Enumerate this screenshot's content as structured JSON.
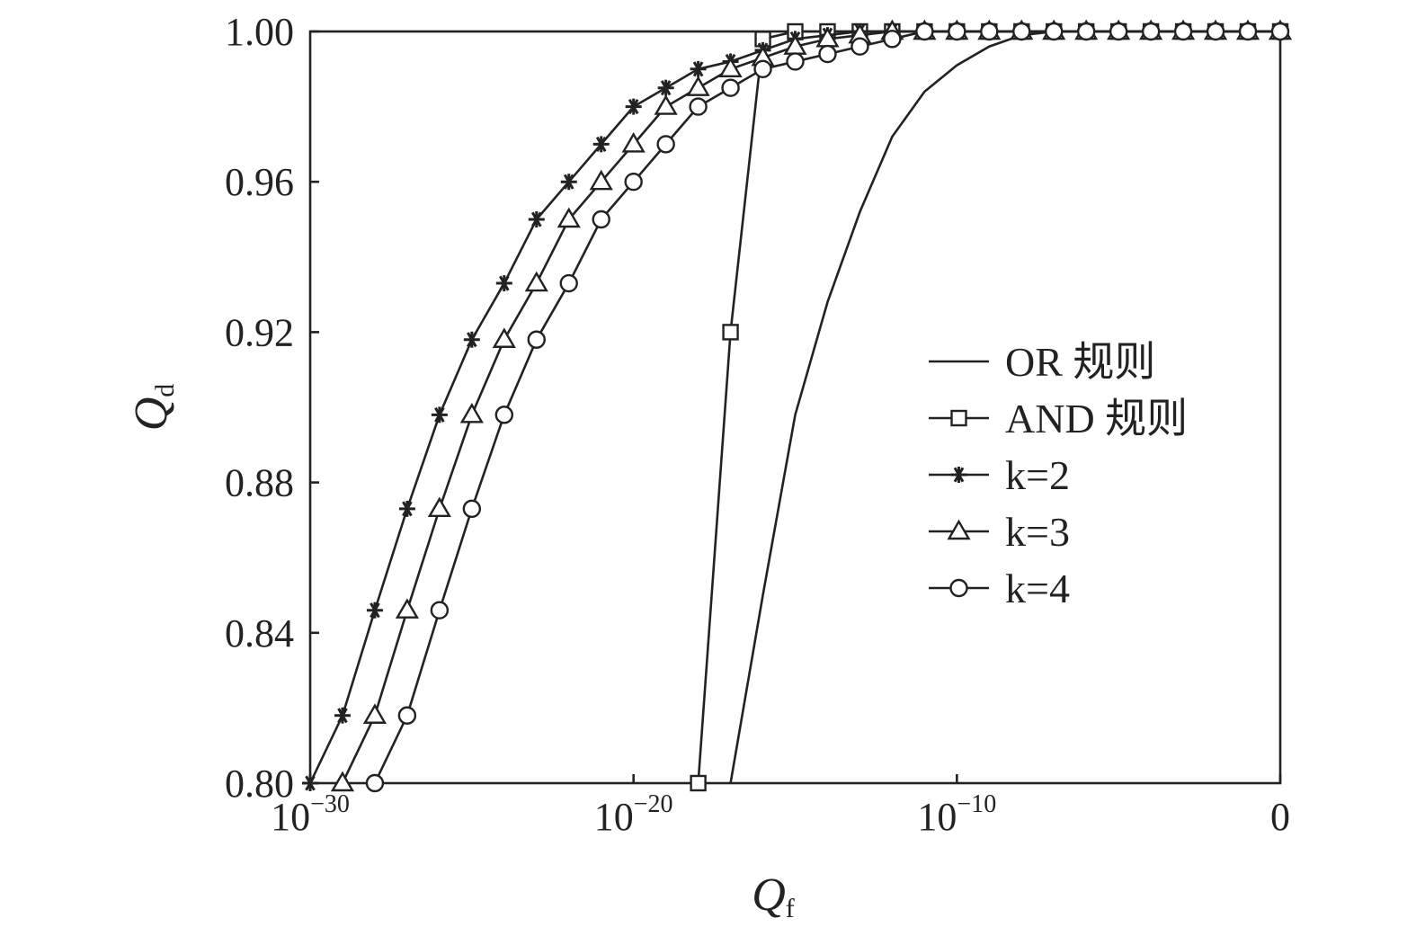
{
  "chart_data": {
    "type": "line",
    "xlabel": "Q",
    "xlabel_sub": "f",
    "ylabel": "Q",
    "ylabel_sub": "d",
    "xscale": "log",
    "xlim_exp": [
      -30,
      0
    ],
    "ylim": [
      0.8,
      1.0
    ],
    "x_ticks": [
      {
        "exp": -30,
        "base": "10",
        "sup": "−30"
      },
      {
        "exp": -20,
        "base": "10",
        "sup": "−20"
      },
      {
        "exp": -10,
        "base": "10",
        "sup": "−10"
      },
      {
        "exp": 0,
        "base": "0",
        "sup": ""
      }
    ],
    "y_ticks": [
      {
        "value": 0.8,
        "label": "0.80"
      },
      {
        "value": 0.84,
        "label": "0.84"
      },
      {
        "value": 0.88,
        "label": "0.88"
      },
      {
        "value": 0.92,
        "label": "0.92"
      },
      {
        "value": 0.96,
        "label": "0.96"
      },
      {
        "value": 1.0,
        "label": "1.00"
      }
    ],
    "legend_position": "right",
    "series": [
      {
        "name": "OR 规则",
        "marker": "none",
        "x_exp": [
          -17.0,
          -16.0,
          -15.0,
          -14.0,
          -13.0,
          -12.0,
          -11.0,
          -10.0,
          -9.0,
          -8.0,
          -7.0,
          -6.0,
          -5.0,
          -4.0,
          -3.0,
          -2.0,
          -1.0,
          0.0
        ],
        "values": [
          0.8,
          0.85,
          0.898,
          0.928,
          0.952,
          0.972,
          0.984,
          0.991,
          0.996,
          0.999,
          1.0,
          1.0,
          1.0,
          1.0,
          1.0,
          1.0,
          1.0,
          1.0
        ]
      },
      {
        "name": "AND 规则",
        "marker": "square",
        "x_exp": [
          -18.0,
          -17.0,
          -16.0,
          -15.0,
          -14.0,
          -13.0,
          -12.0,
          -11.0,
          -10.0,
          -9.0,
          -8.0,
          -7.0,
          -6.0,
          -5.0,
          -4.0,
          -3.0,
          -2.0,
          -1.0,
          0.0
        ],
        "values": [
          0.8,
          0.92,
          0.998,
          1.0,
          1.0,
          1.0,
          1.0,
          1.0,
          1.0,
          1.0,
          1.0,
          1.0,
          1.0,
          1.0,
          1.0,
          1.0,
          1.0,
          1.0,
          1.0
        ]
      },
      {
        "name": "k=2",
        "marker": "asterisk",
        "x_exp": [
          -30.0,
          -29.0,
          -28.0,
          -27.0,
          -26.0,
          -25.0,
          -24.0,
          -23.0,
          -22.0,
          -21.0,
          -20.0,
          -19.0,
          -18.0,
          -17.0,
          -16.0,
          -15.0,
          -14.0,
          -13.0,
          -12.0,
          -11.0,
          -10.0,
          -9.0,
          -8.0,
          -7.0,
          -6.0,
          -5.0,
          -4.0,
          -3.0,
          -2.0,
          -1.0,
          0.0
        ],
        "values": [
          0.8,
          0.818,
          0.846,
          0.873,
          0.898,
          0.918,
          0.933,
          0.95,
          0.96,
          0.97,
          0.98,
          0.985,
          0.99,
          0.992,
          0.995,
          0.998,
          0.999,
          1.0,
          1.0,
          1.0,
          1.0,
          1.0,
          1.0,
          1.0,
          1.0,
          1.0,
          1.0,
          1.0,
          1.0,
          1.0,
          1.0
        ]
      },
      {
        "name": "k=3",
        "marker": "triangle",
        "x_exp": [
          -29.0,
          -28.0,
          -27.0,
          -26.0,
          -25.0,
          -24.0,
          -23.0,
          -22.0,
          -21.0,
          -20.0,
          -19.0,
          -18.0,
          -17.0,
          -16.0,
          -15.0,
          -14.0,
          -13.0,
          -12.0,
          -11.0,
          -10.0,
          -9.0,
          -8.0,
          -7.0,
          -6.0,
          -5.0,
          -4.0,
          -3.0,
          -2.0,
          -1.0,
          0.0
        ],
        "values": [
          0.8,
          0.818,
          0.846,
          0.873,
          0.898,
          0.918,
          0.933,
          0.95,
          0.96,
          0.97,
          0.98,
          0.985,
          0.99,
          0.993,
          0.996,
          0.998,
          0.999,
          1.0,
          1.0,
          1.0,
          1.0,
          1.0,
          1.0,
          1.0,
          1.0,
          1.0,
          1.0,
          1.0,
          1.0,
          1.0
        ]
      },
      {
        "name": "k=4",
        "marker": "circle",
        "x_exp": [
          -28.0,
          -27.0,
          -26.0,
          -25.0,
          -24.0,
          -23.0,
          -22.0,
          -21.0,
          -20.0,
          -19.0,
          -18.0,
          -17.0,
          -16.0,
          -15.0,
          -14.0,
          -13.0,
          -12.0,
          -11.0,
          -10.0,
          -9.0,
          -8.0,
          -7.0,
          -6.0,
          -5.0,
          -4.0,
          -3.0,
          -2.0,
          -1.0,
          0.0
        ],
        "values": [
          0.8,
          0.818,
          0.846,
          0.873,
          0.898,
          0.918,
          0.933,
          0.95,
          0.96,
          0.97,
          0.98,
          0.985,
          0.99,
          0.992,
          0.994,
          0.996,
          0.998,
          1.0,
          1.0,
          1.0,
          1.0,
          1.0,
          1.0,
          1.0,
          1.0,
          1.0,
          1.0,
          1.0,
          1.0
        ]
      }
    ]
  }
}
